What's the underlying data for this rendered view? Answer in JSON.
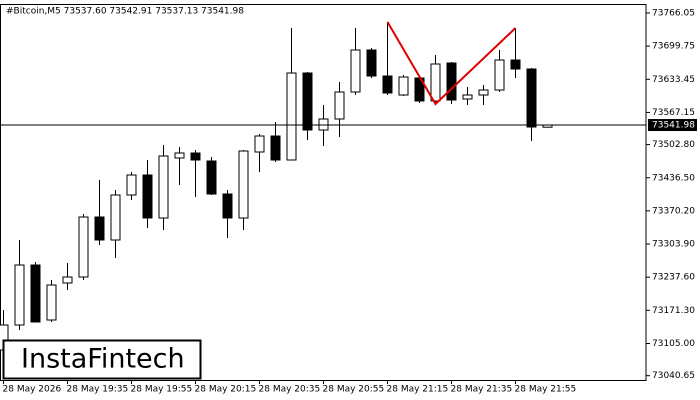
{
  "chart_data": {
    "type": "candlestick",
    "title": "#Bitcoin,M5  73537.60 73542.91 73537.13 73541.98",
    "categories": [
      "28 May 2026",
      null,
      null,
      null,
      "28 May 19:35",
      null,
      null,
      null,
      "28 May 19:55",
      null,
      null,
      null,
      "28 May 20:15",
      null,
      null,
      null,
      "28 May 20:35",
      null,
      null,
      null,
      "28 May 20:55",
      null,
      null,
      null,
      "28 May 21:15",
      null,
      null,
      null,
      "28 May 21:35",
      null,
      null,
      null,
      "28 May 21:55",
      null,
      null
    ],
    "open": [
      73092,
      73142,
      73262,
      73152,
      73226,
      73238,
      73358,
      73312,
      73402,
      73442,
      73356,
      73476,
      73486,
      73470,
      73404,
      73356,
      73488,
      73520,
      73472,
      73646,
      73532,
      73554,
      73608,
      73692,
      73640,
      73602,
      73636,
      73590,
      73666,
      73594,
      73602,
      73612,
      73672,
      73654,
      73537.6
    ],
    "high": [
      73172,
      73312,
      73268,
      73232,
      73266,
      73364,
      73432,
      73412,
      73448,
      73472,
      73502,
      73498,
      73492,
      73478,
      73412,
      73492,
      73524,
      73548,
      73736,
      73648,
      73582,
      73628,
      73736,
      73696,
      73748,
      73642,
      73638,
      73682,
      73668,
      73618,
      73622,
      73692,
      73736,
      73656,
      73542.91
    ],
    "low": [
      73082,
      73132,
      73148,
      73148,
      73212,
      73232,
      73302,
      73276,
      73392,
      73336,
      73332,
      73422,
      73398,
      73402,
      73316,
      73332,
      73448,
      73468,
      73472,
      73512,
      73500,
      73518,
      73602,
      73636,
      73602,
      73600,
      73586,
      73584,
      73584,
      73582,
      73582,
      73608,
      73636,
      73510,
      73537.13
    ],
    "close": [
      73142,
      73262,
      73148,
      73222,
      73238,
      73358,
      73312,
      73402,
      73442,
      73356,
      73480,
      73486,
      73472,
      73404,
      73356,
      73490,
      73520,
      73472,
      73646,
      73532,
      73554,
      73608,
      73692,
      73640,
      73606,
      73638,
      73590,
      73664,
      73592,
      73602,
      73612,
      73672,
      73654,
      73538,
      73541.98
    ],
    "up_color": "#ffffff",
    "down_color": "#000000",
    "ylim": [
      73032,
      73782
    ],
    "yticks": [
      73766.05,
      73699.75,
      73633.45,
      73567.15,
      {
        "value": 73502.8,
        "label": "73502.80"
      },
      {
        "value": 73436.5,
        "label": "73436.50"
      },
      {
        "value": 73370.2,
        "label": "73370.20"
      },
      {
        "value": 73303.9,
        "label": "73303.90"
      },
      {
        "value": 73237.6,
        "label": "73237.60"
      },
      {
        "value": 73171.3,
        "label": "73171.30"
      },
      {
        "value": 73105,
        "label": "73105.00"
      },
      73040.65
    ],
    "price_line": {
      "value": 73541.98,
      "label": "73541.98"
    },
    "pattern": {
      "color": "#e00000",
      "x": [
        24,
        27,
        32
      ],
      "values": [
        73748,
        73584,
        73736
      ]
    },
    "watermark": "InstaFintech"
  }
}
